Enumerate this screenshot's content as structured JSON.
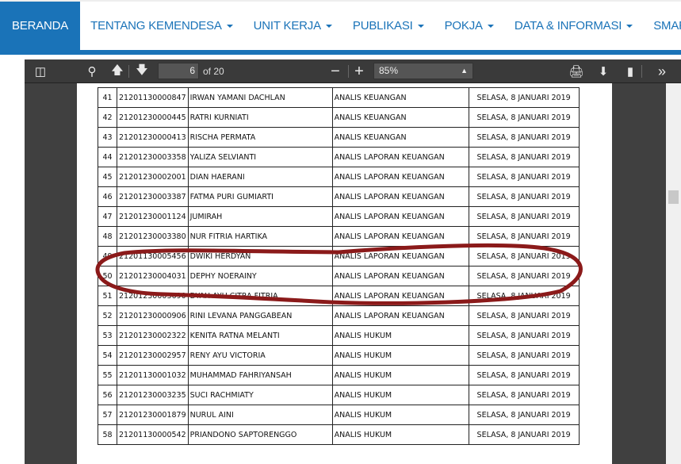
{
  "nav": {
    "items": [
      {
        "label": "BERANDA",
        "active": true,
        "caret": false
      },
      {
        "label": "TENTANG KEMENDESA",
        "caret": true
      },
      {
        "label": "UNIT KERJA",
        "caret": true
      },
      {
        "label": "PUBLIKASI",
        "caret": true
      },
      {
        "label": "POKJA",
        "caret": true
      },
      {
        "label": "DATA & INFORMASI",
        "caret": true
      },
      {
        "label": "SMAR",
        "caret": false
      }
    ],
    "accent": "#1a73b8"
  },
  "toolbar": {
    "page": "6",
    "page_count": "of 20",
    "zoom": "85%"
  },
  "rows": [
    {
      "no": "41",
      "id": "21201130000847",
      "name": "IRWAN YAMANI DACHLAN",
      "position": "ANALIS KEUANGAN",
      "date": "SELASA, 8 JANUARI 2019"
    },
    {
      "no": "42",
      "id": "21201230000445",
      "name": "RATRI KURNIATI",
      "position": "ANALIS KEUANGAN",
      "date": "SELASA, 8 JANUARI 2019"
    },
    {
      "no": "43",
      "id": "21201230000413",
      "name": "RISCHA PERMATA",
      "position": "ANALIS KEUANGAN",
      "date": "SELASA, 8 JANUARI 2019"
    },
    {
      "no": "44",
      "id": "21201230003358",
      "name": "YALIZA SELVIANTI",
      "position": "ANALIS LAPORAN KEUANGAN",
      "date": "SELASA, 8 JANUARI 2019"
    },
    {
      "no": "45",
      "id": "21201230002001",
      "name": "DIAN HAERANI",
      "position": "ANALIS LAPORAN KEUANGAN",
      "date": "SELASA, 8 JANUARI 2019"
    },
    {
      "no": "46",
      "id": "21201230003387",
      "name": "FATMA PURI GUMIARTI",
      "position": "ANALIS LAPORAN KEUANGAN",
      "date": "SELASA, 8 JANUARI 2019"
    },
    {
      "no": "47",
      "id": "21201230001124",
      "name": "JUMIRAH",
      "position": "ANALIS LAPORAN KEUANGAN",
      "date": "SELASA, 8 JANUARI 2019"
    },
    {
      "no": "48",
      "id": "21201230003380",
      "name": "NUR FITRIA HARTIKA",
      "position": "ANALIS LAPORAN KEUANGAN",
      "date": "SELASA, 8 JANUARI 2019"
    },
    {
      "no": "49",
      "id": "21201130005456",
      "name": "DWIKI HERDYAN",
      "position": "ANALIS LAPORAN KEUANGAN",
      "date": "SELASA, 8 JANUARI 2019"
    },
    {
      "no": "50",
      "id": "21201230004031",
      "name": "DEPHY NOERAINY",
      "position": "ANALIS LAPORAN KEUANGAN",
      "date": "SELASA, 8 JANUARI 2019"
    },
    {
      "no": "51",
      "id": "21201230003690",
      "name": "DYAH AYU CITRA FITRIA",
      "position": "ANALIS LAPORAN KEUANGAN",
      "date": "SELASA, 8 JANUARI 2019"
    },
    {
      "no": "52",
      "id": "21201230000906",
      "name": "RINI LEVANA PANGGABEAN",
      "position": "ANALIS LAPORAN KEUANGAN",
      "date": "SELASA, 8 JANUARI 2019"
    },
    {
      "no": "53",
      "id": "21201230002322",
      "name": "KENITA RATNA MELANTI",
      "position": "ANALIS HUKUM",
      "date": "SELASA, 8 JANUARI 2019"
    },
    {
      "no": "54",
      "id": "21201230002957",
      "name": "RENY AYU VICTORIA",
      "position": "ANALIS HUKUM",
      "date": "SELASA, 8 JANUARI 2019"
    },
    {
      "no": "55",
      "id": "21201130001032",
      "name": "MUHAMMAD FAHRIYANSAH",
      "position": "ANALIS HUKUM",
      "date": "SELASA, 8 JANUARI 2019"
    },
    {
      "no": "56",
      "id": "21201230003235",
      "name": "SUCI RACHMIATY",
      "position": "ANALIS HUKUM",
      "date": "SELASA, 8 JANUARI 2019"
    },
    {
      "no": "57",
      "id": "21201230001879",
      "name": "NURUL AINI",
      "position": "ANALIS HUKUM",
      "date": "SELASA, 8 JANUARI 2019"
    },
    {
      "no": "58",
      "id": "21201130000542",
      "name": "PRIANDONO SAPTORENGGO",
      "position": "ANALIS HUKUM",
      "date": "SELASA, 8 JANUARI 2019"
    }
  ],
  "highlight_color": "#8b1a1a"
}
